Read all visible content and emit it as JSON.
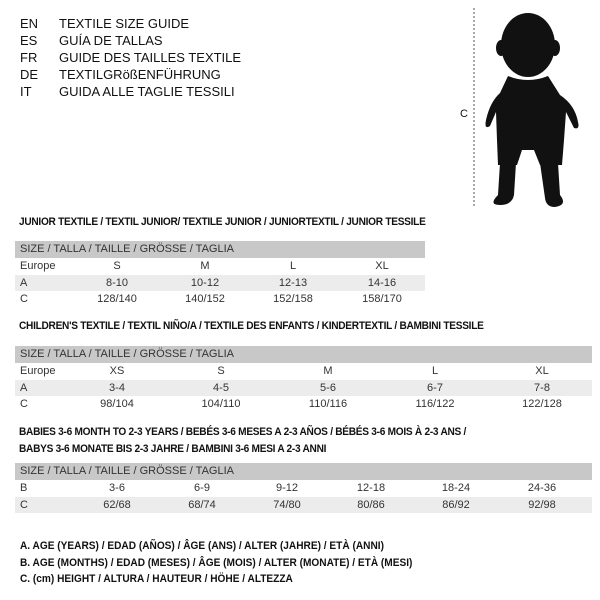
{
  "guide_titles": [
    {
      "code": "EN",
      "text": "TEXTILE SIZE GUIDE"
    },
    {
      "code": "ES",
      "text": "GUÍA DE TALLAS"
    },
    {
      "code": "FR",
      "text": "GUIDE DES TAILLES TEXTILE"
    },
    {
      "code": "DE",
      "text": "TEXTILGRößENFÜHRUNG"
    },
    {
      "code": "IT",
      "text": "GUIDA ALLE TAGLIE TESSILI"
    }
  ],
  "figure": {
    "measure_label": "C"
  },
  "junior": {
    "title": "JUNIOR TEXTILE / TEXTIL JUNIOR/ TEXTILE JUNIOR / JUNIORTEXTIL / JUNIOR TESSILE",
    "header": "SIZE / TALLA / TAILLE / GRÖSSE / TAGLIA",
    "rows": [
      {
        "label": "Europe",
        "values": [
          "S",
          "M",
          "L",
          "XL"
        ]
      },
      {
        "label": "A",
        "values": [
          "8-10",
          "10-12",
          "12-13",
          "14-16"
        ]
      },
      {
        "label": "C",
        "values": [
          "128/140",
          "140/152",
          "152/158",
          "158/170"
        ]
      }
    ]
  },
  "children": {
    "title": "CHILDREN'S TEXTILE / TEXTIL NIÑO/A / TEXTILE DES ENFANTS / KINDERTEXTIL / BAMBINI TESSILE",
    "header": "SIZE / TALLA / TAILLE / GRÖSSE / TAGLIA",
    "rows": [
      {
        "label": "Europe",
        "values": [
          "XS",
          "S",
          "M",
          "L",
          "XL"
        ]
      },
      {
        "label": "A",
        "values": [
          "3-4",
          "4-5",
          "5-6",
          "6-7",
          "7-8"
        ]
      },
      {
        "label": "C",
        "values": [
          "98/104",
          "104/110",
          "110/116",
          "116/122",
          "122/128"
        ]
      }
    ]
  },
  "babies": {
    "title_line1": "BABIES 3-6 MONTH TO 2-3 YEARS / BEBÉS 3-6 MESES A 2-3 AÑOS / BÉBÉS 3-6 MOIS À 2-3 ANS /",
    "title_line2": "BABYS 3-6 MONATE BIS 2-3 JAHRE / BAMBINI 3-6 MESI A 2-3 ANNI",
    "header": "SIZE / TALLA / TAILLE / GRÖSSE / TAGLIA",
    "rows": [
      {
        "label": "B",
        "values": [
          "3-6",
          "6-9",
          "9-12",
          "12-18",
          "18-24",
          "24-36"
        ]
      },
      {
        "label": "C",
        "values": [
          "62/68",
          "68/74",
          "74/80",
          "80/86",
          "86/92",
          "92/98"
        ]
      }
    ]
  },
  "legend": [
    "A. AGE (YEARS) / EDAD (AÑOS) / ÂGE (ANS) / ALTER (JAHRE) / ETÀ (ANNI)",
    "B. AGE (MONTHS) / EDAD (MESES) / ÂGE (MOIS) / ALTER (MONATE) / ETÀ (MESI)",
    "C. (cm) HEIGHT / ALTURA / HAUTEUR / HÖHE / ALTEZZA"
  ]
}
